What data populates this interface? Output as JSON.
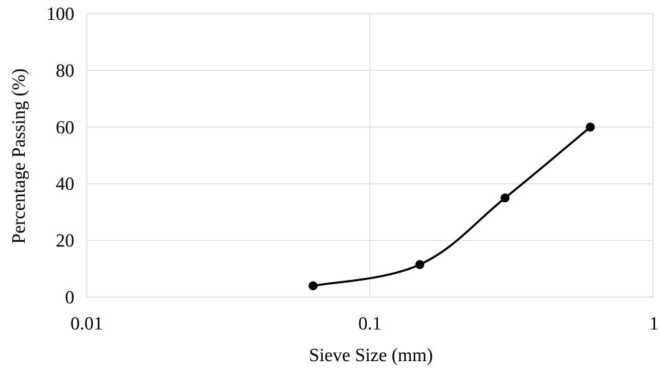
{
  "chart_data": {
    "type": "scatter",
    "title": "",
    "xlabel": "Sieve Size (mm)",
    "ylabel": "Percentage Passing (%)",
    "x_scale": "log",
    "xlim": [
      0.01,
      1
    ],
    "ylim": [
      0,
      100
    ],
    "x_ticks": [
      0.01,
      0.1,
      1
    ],
    "x_tick_labels": [
      "0.01",
      "0.1",
      "1"
    ],
    "y_ticks": [
      0,
      20,
      40,
      60,
      80,
      100
    ],
    "y_tick_labels": [
      "0",
      "20",
      "40",
      "60",
      "80",
      "100"
    ],
    "grid": true,
    "legend": "none",
    "line_style": "smoothed line with markers",
    "series": [
      {
        "color": "#000000",
        "x": [
          0.063,
          0.15,
          0.3,
          0.6
        ],
        "y": [
          4,
          11.5,
          35,
          60
        ]
      }
    ]
  },
  "colors": {
    "gridline": "#d9d9d9",
    "series": "#000000",
    "text": "#000000"
  }
}
